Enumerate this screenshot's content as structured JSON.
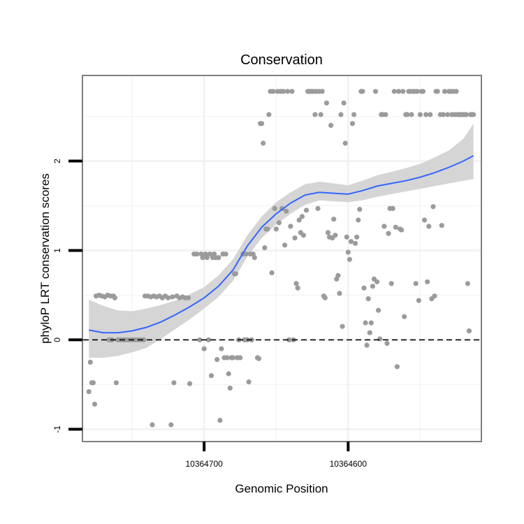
{
  "chart_data": {
    "type": "scatter",
    "title": "Conservation",
    "xlabel": "Genomic Position",
    "ylabel": "phyloP LRT conservation scores",
    "x_axis_reversed": true,
    "xlim": [
      10364784,
      10364508
    ],
    "ylim": [
      -1.13,
      2.95
    ],
    "x_ticks": [
      {
        "value": 10364700,
        "label": "10364700"
      },
      {
        "value": 10364600,
        "label": "10364600"
      }
    ],
    "y_ticks": [
      {
        "value": -1,
        "label": "-1"
      },
      {
        "value": 0,
        "label": "0"
      },
      {
        "value": 1,
        "label": "1"
      },
      {
        "value": 2,
        "label": "2"
      }
    ],
    "grid": true,
    "reference_line": {
      "y": 0,
      "style": "dashed",
      "color": "#000000"
    },
    "colors": {
      "points": "#9b9b9b",
      "smooth_line": "#3366ff",
      "ribbon": "#d3d3d3",
      "frame": "#7f7f7f"
    },
    "smooth": {
      "x": [
        10364780,
        10364770,
        10364760,
        10364750,
        10364740,
        10364730,
        10364720,
        10364710,
        10364700,
        10364690,
        10364680,
        10364670,
        10364660,
        10364650,
        10364640,
        10364630,
        10364620,
        10364610,
        10364600,
        10364590,
        10364580,
        10364570,
        10364560,
        10364550,
        10364540,
        10364530,
        10364520,
        10364513
      ],
      "y": [
        0.11,
        0.08,
        0.08,
        0.1,
        0.14,
        0.2,
        0.28,
        0.37,
        0.47,
        0.6,
        0.78,
        1.05,
        1.26,
        1.41,
        1.53,
        1.62,
        1.65,
        1.64,
        1.63,
        1.67,
        1.72,
        1.75,
        1.78,
        1.82,
        1.87,
        1.93,
        2.0,
        2.06
      ],
      "ymin": [
        -0.2,
        -0.2,
        -0.18,
        -0.14,
        -0.09,
        0.01,
        0.12,
        0.23,
        0.35,
        0.48,
        0.66,
        0.93,
        1.14,
        1.29,
        1.41,
        1.51,
        1.56,
        1.55,
        1.54,
        1.56,
        1.6,
        1.63,
        1.66,
        1.69,
        1.72,
        1.75,
        1.78,
        1.8
      ],
      "ymax": [
        0.45,
        0.38,
        0.33,
        0.32,
        0.35,
        0.39,
        0.44,
        0.51,
        0.59,
        0.72,
        0.9,
        1.17,
        1.38,
        1.54,
        1.65,
        1.74,
        1.77,
        1.75,
        1.73,
        1.78,
        1.84,
        1.88,
        1.92,
        1.97,
        2.04,
        2.12,
        2.25,
        2.42
      ]
    },
    "points": [
      {
        "x": 10364780,
        "y": -0.58
      },
      {
        "x": 10364779,
        "y": -0.25
      },
      {
        "x": 10364778,
        "y": -0.48
      },
      {
        "x": 10364777,
        "y": -0.48
      },
      {
        "x": 10364776,
        "y": -0.72
      },
      {
        "x": 10364775,
        "y": 0.49
      },
      {
        "x": 10364773,
        "y": 0.5
      },
      {
        "x": 10364771,
        "y": 0.49
      },
      {
        "x": 10364769,
        "y": 0.48
      },
      {
        "x": 10364767,
        "y": 0.5
      },
      {
        "x": 10364766,
        "y": 0.0
      },
      {
        "x": 10364765,
        "y": 0.49
      },
      {
        "x": 10364764,
        "y": 0.0
      },
      {
        "x": 10364763,
        "y": 0.49
      },
      {
        "x": 10364762,
        "y": 0.47
      },
      {
        "x": 10364761,
        "y": -0.48
      },
      {
        "x": 10364760,
        "y": 0.0
      },
      {
        "x": 10364758,
        "y": 0.0
      },
      {
        "x": 10364756,
        "y": 0.0
      },
      {
        "x": 10364754,
        "y": 0.0
      },
      {
        "x": 10364752,
        "y": 0.0
      },
      {
        "x": 10364750,
        "y": 0.0
      },
      {
        "x": 10364748,
        "y": 0.0
      },
      {
        "x": 10364746,
        "y": 0.0
      },
      {
        "x": 10364744,
        "y": 0.0
      },
      {
        "x": 10364742,
        "y": 0.0
      },
      {
        "x": 10364741,
        "y": 0.49
      },
      {
        "x": 10364739,
        "y": 0.49
      },
      {
        "x": 10364737,
        "y": 0.48
      },
      {
        "x": 10364736,
        "y": -0.95
      },
      {
        "x": 10364735,
        "y": 0.49
      },
      {
        "x": 10364733,
        "y": 0.48
      },
      {
        "x": 10364731,
        "y": 0.49
      },
      {
        "x": 10364729,
        "y": 0.47
      },
      {
        "x": 10364727,
        "y": 0.49
      },
      {
        "x": 10364725,
        "y": 0.47
      },
      {
        "x": 10364723,
        "y": -0.95
      },
      {
        "x": 10364722,
        "y": 0.48
      },
      {
        "x": 10364721,
        "y": -0.48
      },
      {
        "x": 10364719,
        "y": 0.49
      },
      {
        "x": 10364717,
        "y": 0.47
      },
      {
        "x": 10364715,
        "y": 0.48
      },
      {
        "x": 10364713,
        "y": 0.47
      },
      {
        "x": 10364711,
        "y": 0.47
      },
      {
        "x": 10364710,
        "y": -0.49
      },
      {
        "x": 10364707,
        "y": 0.96
      },
      {
        "x": 10364705,
        "y": 0.96
      },
      {
        "x": 10364703,
        "y": 0.0
      },
      {
        "x": 10364702,
        "y": 0.96
      },
      {
        "x": 10364701,
        "y": 0.92
      },
      {
        "x": 10364700,
        "y": -0.1
      },
      {
        "x": 10364699,
        "y": 0.96
      },
      {
        "x": 10364698,
        "y": 0.92
      },
      {
        "x": 10364697,
        "y": 0.0
      },
      {
        "x": 10364696,
        "y": 0.96
      },
      {
        "x": 10364695,
        "y": -0.4
      },
      {
        "x": 10364694,
        "y": 0.92
      },
      {
        "x": 10364693,
        "y": 0.96
      },
      {
        "x": 10364692,
        "y": 0.92
      },
      {
        "x": 10364691,
        "y": -0.22
      },
      {
        "x": 10364690,
        "y": 0.92
      },
      {
        "x": 10364689,
        "y": -0.9
      },
      {
        "x": 10364688,
        "y": -0.1
      },
      {
        "x": 10364687,
        "y": 0.96
      },
      {
        "x": 10364686,
        "y": -0.2
      },
      {
        "x": 10364685,
        "y": 0.96
      },
      {
        "x": 10364684,
        "y": -0.2
      },
      {
        "x": 10364683,
        "y": -0.38
      },
      {
        "x": 10364682,
        "y": -0.54
      },
      {
        "x": 10364681,
        "y": -0.2
      },
      {
        "x": 10364680,
        "y": -0.2
      },
      {
        "x": 10364679,
        "y": 0.74
      },
      {
        "x": 10364678,
        "y": 0.74
      },
      {
        "x": 10364677,
        "y": -0.2
      },
      {
        "x": 10364676,
        "y": 0.0
      },
      {
        "x": 10364675,
        "y": -0.2
      },
      {
        "x": 10364673,
        "y": 0.96
      },
      {
        "x": 10364672,
        "y": 0.0
      },
      {
        "x": 10364671,
        "y": 0.96
      },
      {
        "x": 10364670,
        "y": 0.0
      },
      {
        "x": 10364669,
        "y": -0.47
      },
      {
        "x": 10364668,
        "y": 0.96
      },
      {
        "x": 10364667,
        "y": 0.0
      },
      {
        "x": 10364666,
        "y": 0.96
      },
      {
        "x": 10364665,
        "y": 0.92
      },
      {
        "x": 10364663,
        "y": -0.2
      },
      {
        "x": 10364662,
        "y": -0.21
      },
      {
        "x": 10364661,
        "y": 2.42
      },
      {
        "x": 10364660,
        "y": 2.42
      },
      {
        "x": 10364659,
        "y": 2.2
      },
      {
        "x": 10364658,
        "y": 1.03
      },
      {
        "x": 10364657,
        "y": 1.24
      },
      {
        "x": 10364656,
        "y": 1.24
      },
      {
        "x": 10364655,
        "y": 2.52
      },
      {
        "x": 10364654,
        "y": 2.78
      },
      {
        "x": 10364653,
        "y": 0.75
      },
      {
        "x": 10364652,
        "y": 2.78
      },
      {
        "x": 10364651,
        "y": 1.47
      },
      {
        "x": 10364650,
        "y": 1.24
      },
      {
        "x": 10364649,
        "y": 2.78
      },
      {
        "x": 10364648,
        "y": 1.31
      },
      {
        "x": 10364647,
        "y": 2.78
      },
      {
        "x": 10364646,
        "y": 1.47
      },
      {
        "x": 10364645,
        "y": 2.78
      },
      {
        "x": 10364644,
        "y": 1.06
      },
      {
        "x": 10364643,
        "y": 1.44
      },
      {
        "x": 10364642,
        "y": 2.78
      },
      {
        "x": 10364641,
        "y": 0.0
      },
      {
        "x": 10364640,
        "y": 1.27
      },
      {
        "x": 10364639,
        "y": 2.78
      },
      {
        "x": 10364638,
        "y": 0.0
      },
      {
        "x": 10364637,
        "y": 1.14
      },
      {
        "x": 10364636,
        "y": 0.63
      },
      {
        "x": 10364635,
        "y": 0.58
      },
      {
        "x": 10364634,
        "y": 1.34
      },
      {
        "x": 10364633,
        "y": 1.2
      },
      {
        "x": 10364632,
        "y": 1.38
      },
      {
        "x": 10364631,
        "y": 1.17
      },
      {
        "x": 10364629,
        "y": 1.45
      },
      {
        "x": 10364628,
        "y": 2.78
      },
      {
        "x": 10364627,
        "y": 2.78
      },
      {
        "x": 10364626,
        "y": 2.78
      },
      {
        "x": 10364625,
        "y": 2.78
      },
      {
        "x": 10364624,
        "y": 2.78
      },
      {
        "x": 10364623,
        "y": 2.52
      },
      {
        "x": 10364622,
        "y": 2.78
      },
      {
        "x": 10364621,
        "y": 1.47
      },
      {
        "x": 10364620,
        "y": 2.78
      },
      {
        "x": 10364619,
        "y": 2.52
      },
      {
        "x": 10364618,
        "y": 2.78
      },
      {
        "x": 10364617,
        "y": 0.49
      },
      {
        "x": 10364616,
        "y": 0.47
      },
      {
        "x": 10364615,
        "y": 2.65
      },
      {
        "x": 10364614,
        "y": 1.2
      },
      {
        "x": 10364613,
        "y": 1.15
      },
      {
        "x": 10364612,
        "y": 2.4
      },
      {
        "x": 10364611,
        "y": 1.14
      },
      {
        "x": 10364610,
        "y": 1.35
      },
      {
        "x": 10364609,
        "y": 1.17
      },
      {
        "x": 10364608,
        "y": 0.68
      },
      {
        "x": 10364607,
        "y": 0.72
      },
      {
        "x": 10364606,
        "y": 0.52
      },
      {
        "x": 10364605,
        "y": 2.52
      },
      {
        "x": 10364604,
        "y": 0.15
      },
      {
        "x": 10364603,
        "y": 2.65
      },
      {
        "x": 10364602,
        "y": 2.2
      },
      {
        "x": 10364601,
        "y": 1.15
      },
      {
        "x": 10364600,
        "y": 0.98
      },
      {
        "x": 10364599,
        "y": 0.9
      },
      {
        "x": 10364598,
        "y": 1.1
      },
      {
        "x": 10364597,
        "y": 2.42
      },
      {
        "x": 10364596,
        "y": 2.52
      },
      {
        "x": 10364595,
        "y": 1.08
      },
      {
        "x": 10364594,
        "y": 1.15
      },
      {
        "x": 10364593,
        "y": 1.34
      },
      {
        "x": 10364592,
        "y": 1.46
      },
      {
        "x": 10364591,
        "y": 2.78
      },
      {
        "x": 10364590,
        "y": 2.78
      },
      {
        "x": 10364589,
        "y": 0.58
      },
      {
        "x": 10364588,
        "y": 0.19
      },
      {
        "x": 10364587,
        "y": -0.06
      },
      {
        "x": 10364586,
        "y": 0.46
      },
      {
        "x": 10364585,
        "y": 0.08
      },
      {
        "x": 10364584,
        "y": 0.19
      },
      {
        "x": 10364583,
        "y": 0.6
      },
      {
        "x": 10364582,
        "y": 0.68
      },
      {
        "x": 10364581,
        "y": 2.78
      },
      {
        "x": 10364580,
        "y": 0.65
      },
      {
        "x": 10364579,
        "y": 0.33
      },
      {
        "x": 10364578,
        "y": 0.01
      },
      {
        "x": 10364577,
        "y": 2.52
      },
      {
        "x": 10364576,
        "y": 2.52
      },
      {
        "x": 10364575,
        "y": 1.27
      },
      {
        "x": 10364574,
        "y": 2.52
      },
      {
        "x": 10364573,
        "y": -0.04
      },
      {
        "x": 10364572,
        "y": 1.19
      },
      {
        "x": 10364571,
        "y": 1.47
      },
      {
        "x": 10364570,
        "y": 0.63
      },
      {
        "x": 10364569,
        "y": 1.47
      },
      {
        "x": 10364568,
        "y": 2.78
      },
      {
        "x": 10364567,
        "y": 1.26
      },
      {
        "x": 10364566,
        "y": -0.3
      },
      {
        "x": 10364565,
        "y": 2.78
      },
      {
        "x": 10364564,
        "y": 1.24
      },
      {
        "x": 10364563,
        "y": 1.23
      },
      {
        "x": 10364562,
        "y": 2.78
      },
      {
        "x": 10364561,
        "y": 0.26
      },
      {
        "x": 10364560,
        "y": 2.52
      },
      {
        "x": 10364559,
        "y": 2.52
      },
      {
        "x": 10364558,
        "y": 2.78
      },
      {
        "x": 10364557,
        "y": 2.78
      },
      {
        "x": 10364556,
        "y": 2.52
      },
      {
        "x": 10364555,
        "y": 2.78
      },
      {
        "x": 10364554,
        "y": 2.78
      },
      {
        "x": 10364553,
        "y": 0.63
      },
      {
        "x": 10364552,
        "y": 2.78
      },
      {
        "x": 10364551,
        "y": 0.44
      },
      {
        "x": 10364550,
        "y": 2.52
      },
      {
        "x": 10364549,
        "y": 2.78
      },
      {
        "x": 10364548,
        "y": 2.78
      },
      {
        "x": 10364547,
        "y": 1.34
      },
      {
        "x": 10364546,
        "y": 2.52
      },
      {
        "x": 10364545,
        "y": 0.65
      },
      {
        "x": 10364544,
        "y": 1.27
      },
      {
        "x": 10364543,
        "y": 2.52
      },
      {
        "x": 10364542,
        "y": 0.46
      },
      {
        "x": 10364541,
        "y": 1.49
      },
      {
        "x": 10364540,
        "y": 0.49
      },
      {
        "x": 10364539,
        "y": 2.78
      },
      {
        "x": 10364538,
        "y": 2.78
      },
      {
        "x": 10364536,
        "y": 2.52
      },
      {
        "x": 10364535,
        "y": 1.28
      },
      {
        "x": 10364534,
        "y": 2.52
      },
      {
        "x": 10364533,
        "y": 2.78
      },
      {
        "x": 10364531,
        "y": 2.52
      },
      {
        "x": 10364530,
        "y": 2.78
      },
      {
        "x": 10364529,
        "y": 2.78
      },
      {
        "x": 10364528,
        "y": 2.52
      },
      {
        "x": 10364527,
        "y": 2.78
      },
      {
        "x": 10364526,
        "y": 2.52
      },
      {
        "x": 10364525,
        "y": 2.78
      },
      {
        "x": 10364524,
        "y": 2.52
      },
      {
        "x": 10364523,
        "y": 2.52
      },
      {
        "x": 10364522,
        "y": 2.52
      },
      {
        "x": 10364521,
        "y": 2.52
      },
      {
        "x": 10364520,
        "y": 2.52
      },
      {
        "x": 10364519,
        "y": 2.52
      },
      {
        "x": 10364518,
        "y": 2.52
      },
      {
        "x": 10364517,
        "y": 0.63
      },
      {
        "x": 10364516,
        "y": 0.1
      },
      {
        "x": 10364515,
        "y": 2.52
      },
      {
        "x": 10364514,
        "y": 2.52
      },
      {
        "x": 10364513,
        "y": 2.52
      }
    ]
  }
}
